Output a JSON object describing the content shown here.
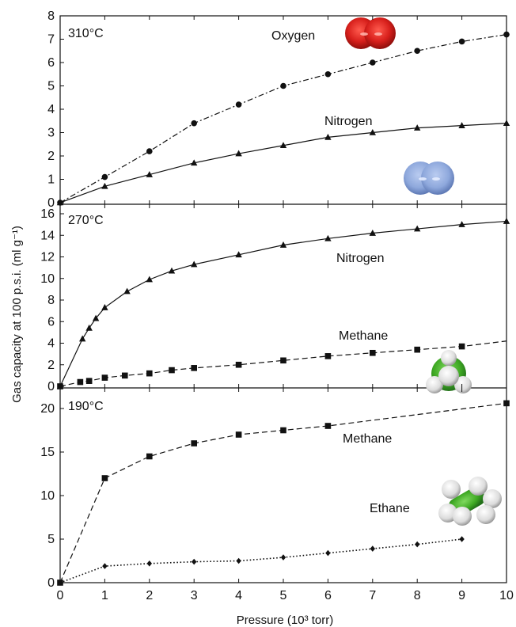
{
  "x_axis": {
    "label": "Pressure (10³ torr)",
    "ticks": [
      "0",
      "1",
      "2",
      "3",
      "4",
      "5",
      "6",
      "7",
      "8",
      "9",
      "10"
    ],
    "range": [
      0,
      10
    ]
  },
  "y_axis": {
    "label": "Gas capacity at 100 p.s.i. (ml g⁻¹)"
  },
  "colors": {
    "oxygen": "#d8201c",
    "nitrogen": "#8ea8dc",
    "carbon": "#3ea823",
    "hydrogen": "#e6e6e6"
  },
  "chart_data": [
    {
      "type": "line",
      "panel_label": "310°C",
      "xlim": [
        0,
        10
      ],
      "ylim": [
        0,
        8
      ],
      "yticks": [
        "0",
        "1",
        "2",
        "3",
        "4",
        "5",
        "6",
        "7",
        "8"
      ],
      "series": [
        {
          "name": "Oxygen",
          "marker": "circle",
          "line": "dashdot",
          "x": [
            0,
            1,
            2,
            3,
            4,
            5,
            6,
            7,
            8,
            9,
            10
          ],
          "y": [
            0,
            1.1,
            2.2,
            3.4,
            4.2,
            5.0,
            5.5,
            6.0,
            6.5,
            6.9,
            7.2
          ]
        },
        {
          "name": "Nitrogen",
          "marker": "triangle",
          "line": "solid",
          "x": [
            0,
            1,
            2,
            3,
            4,
            5,
            6,
            7,
            8,
            9,
            10
          ],
          "y": [
            0,
            0.7,
            1.2,
            1.7,
            2.1,
            2.45,
            2.8,
            3.0,
            3.2,
            3.3,
            3.4
          ]
        }
      ]
    },
    {
      "type": "line",
      "panel_label": "270°C",
      "xlim": [
        0,
        10
      ],
      "ylim": [
        0,
        16
      ],
      "yticks": [
        "0",
        "2",
        "4",
        "6",
        "8",
        "10",
        "12",
        "14",
        "16"
      ],
      "series": [
        {
          "name": "Nitrogen",
          "marker": "triangle",
          "line": "solid",
          "x": [
            0,
            0.5,
            0.65,
            0.8,
            1.0,
            1.5,
            2.0,
            2.5,
            3.0,
            4.0,
            5.0,
            6.0,
            7.0,
            8.0,
            9.0,
            10.0
          ],
          "y": [
            0,
            4.4,
            5.4,
            6.3,
            7.3,
            8.8,
            9.9,
            10.7,
            11.3,
            12.2,
            13.1,
            13.7,
            14.2,
            14.6,
            15.0,
            15.3
          ]
        },
        {
          "name": "Methane",
          "marker": "square",
          "line": "dashed",
          "x": [
            0,
            0.45,
            0.65,
            1.0,
            1.45,
            2.0,
            2.5,
            3.0,
            4.0,
            5.0,
            6.0,
            7.0,
            8.0,
            9.0,
            10.0
          ],
          "y": [
            0,
            0.4,
            0.5,
            0.8,
            1.0,
            1.2,
            1.5,
            1.7,
            2.0,
            2.4,
            2.8,
            3.1,
            3.4,
            3.7,
            4.2
          ],
          "marker_count": 14
        }
      ]
    },
    {
      "type": "line",
      "panel_label": "190°C",
      "xlim": [
        0,
        10
      ],
      "ylim": [
        0,
        21
      ],
      "yticks": [
        "0",
        "5",
        "10",
        "15",
        "20"
      ],
      "ytick_values": [
        0,
        5,
        10,
        15,
        20
      ],
      "series": [
        {
          "name": "Methane",
          "marker": "square",
          "line": "dashed",
          "x": [
            0,
            1,
            2,
            3,
            4,
            5,
            6,
            10
          ],
          "y": [
            0,
            12.0,
            14.5,
            16.0,
            17.0,
            17.5,
            18.0,
            20.6
          ]
        },
        {
          "name": "Ethane",
          "marker": "diamond",
          "line": "dotted",
          "x": [
            0,
            1,
            2,
            3,
            4,
            5,
            6,
            7,
            8,
            9
          ],
          "y": [
            0,
            1.9,
            2.2,
            2.4,
            2.5,
            2.9,
            3.4,
            3.9,
            4.4,
            5.0
          ]
        }
      ]
    }
  ]
}
